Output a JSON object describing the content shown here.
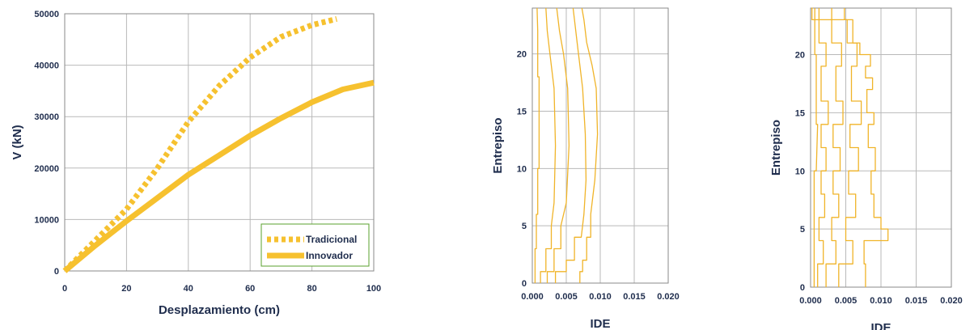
{
  "colors": {
    "series": "#f6c12f",
    "profile": "#f0b429",
    "grid": "#b9b9b9",
    "text": "#1f2d4d",
    "legend_border": "#5aa02c"
  },
  "chart_data": [
    {
      "type": "line",
      "xlabel": "Desplazamiento (cm)",
      "ylabel": "V (kN)",
      "xlim": [
        0,
        100
      ],
      "ylim": [
        0,
        50000
      ],
      "xticks": [
        "0",
        "20",
        "40",
        "60",
        "80",
        "100"
      ],
      "yticks": [
        "0",
        "10000",
        "20000",
        "30000",
        "40000",
        "50000"
      ],
      "grid": true,
      "legend_position": "bottom-right",
      "series": [
        {
          "name": "Tradicional",
          "style": "dotted",
          "x": [
            0,
            10,
            20,
            30,
            40,
            50,
            60,
            70,
            80,
            88
          ],
          "y": [
            0,
            6000,
            12000,
            20000,
            29000,
            36000,
            41500,
            45500,
            47800,
            49000
          ]
        },
        {
          "name": "Innovador",
          "style": "solid",
          "x": [
            0,
            10,
            20,
            30,
            40,
            50,
            60,
            70,
            80,
            90,
            100
          ],
          "y": [
            0,
            5000,
            9700,
            14200,
            18700,
            22500,
            26300,
            29700,
            32800,
            35300,
            36600
          ]
        }
      ]
    },
    {
      "type": "line",
      "xlabel": "IDE",
      "ylabel": "Entrepiso",
      "xlim": [
        0,
        0.02
      ],
      "ylim": [
        0,
        24
      ],
      "xticks": [
        "0.000",
        "0.005",
        "0.010",
        "0.015",
        "0.020"
      ],
      "yticks": [
        "0",
        "5",
        "10",
        "15",
        "20"
      ],
      "grid": true,
      "series": [
        {
          "x": [
            0.0004,
            0.0004,
            0.0006,
            0.0006,
            0.0008,
            0.0008,
            0.001,
            0.001,
            0.001,
            0.0008,
            0.0008,
            0.0007
          ],
          "y": [
            0,
            3,
            3,
            6,
            6,
            10,
            10,
            14,
            18,
            18,
            22,
            24
          ]
        },
        {
          "x": [
            0.0012,
            0.0012,
            0.002,
            0.002,
            0.0028,
            0.0028,
            0.0032,
            0.0034,
            0.0032,
            0.0026,
            0.0022,
            0.002
          ],
          "y": [
            0,
            1,
            1,
            3,
            3,
            5,
            7,
            12,
            17,
            20,
            22,
            24
          ]
        },
        {
          "x": [
            0.0022,
            0.0022,
            0.0032,
            0.0032,
            0.0042,
            0.0042,
            0.005,
            0.0054,
            0.0052,
            0.0046,
            0.004,
            0.0036
          ],
          "y": [
            0,
            1,
            1,
            3,
            3,
            5,
            7,
            12,
            17,
            20,
            22,
            24
          ]
        },
        {
          "x": [
            0.0034,
            0.0034,
            0.005,
            0.005,
            0.0062,
            0.0062,
            0.0072,
            0.0076,
            0.0079,
            0.0078,
            0.0074,
            0.007,
            0.0066,
            0.0062,
            0.006
          ],
          "y": [
            0,
            1,
            1,
            2,
            2,
            4,
            4,
            6,
            9,
            13,
            17,
            19,
            21,
            23,
            24
          ]
        },
        {
          "x": [
            0.007,
            0.007,
            0.0074,
            0.0074,
            0.008,
            0.008,
            0.0086,
            0.0086,
            0.0092,
            0.0096,
            0.0094,
            0.0088,
            0.008,
            0.0076,
            0.0073
          ],
          "y": [
            0,
            1,
            1,
            2,
            2,
            4,
            4,
            6,
            9,
            13,
            17,
            19,
            21,
            23,
            24
          ]
        }
      ]
    },
    {
      "type": "line",
      "xlabel": "IDE",
      "ylabel": "Entrepiso",
      "xlim": [
        0,
        0.02
      ],
      "ylim": [
        0,
        24
      ],
      "xticks": [
        "0.000",
        "0.005",
        "0.010",
        "0.015",
        "0.020"
      ],
      "yticks": [
        "0",
        "5",
        "10",
        "15",
        "20"
      ],
      "grid": true,
      "series": [
        {
          "x": [
            0.0005,
            0.0005,
            0.0005,
            0.0005,
            0.0008,
            0.001,
            0.0008,
            0.0008,
            0.0006,
            0.0006
          ],
          "y": [
            0,
            3,
            3,
            10,
            10,
            14,
            14,
            20,
            20,
            24
          ]
        },
        {
          "x": [
            0.001,
            0.001,
            0.0018,
            0.0018,
            0.0012,
            0.0012,
            0.002,
            0.002,
            0.0015,
            0.0015,
            0.0022,
            0.0022,
            0.0015,
            0.0015,
            0.0025,
            0.0025,
            0.0015,
            0.0015,
            0.0022,
            0.0022,
            0.0012,
            0.0012
          ],
          "y": [
            0,
            2,
            2,
            4,
            4,
            6,
            6,
            8,
            8,
            10,
            10,
            12,
            12,
            14,
            14,
            16,
            16,
            19,
            19,
            21,
            21,
            24
          ]
        },
        {
          "x": [
            0.0022,
            0.0022,
            0.0036,
            0.0036,
            0.003,
            0.003,
            0.004,
            0.004,
            0.0032,
            0.0032,
            0.0042,
            0.0042,
            0.0032,
            0.0032,
            0.0046,
            0.0046,
            0.0036,
            0.0036,
            0.0044,
            0.0044,
            0.003,
            0.003
          ],
          "y": [
            0,
            2,
            2,
            4,
            4,
            6,
            6,
            8,
            8,
            10,
            10,
            12,
            12,
            14,
            14,
            16,
            16,
            19,
            19,
            21,
            21,
            24
          ]
        },
        {
          "x": [
            0.004,
            0.004,
            0.006,
            0.006,
            0.005,
            0.005,
            0.0064,
            0.0064,
            0.0054,
            0.0054,
            0.0068,
            0.0068,
            0.0056,
            0.0056,
            0.0072,
            0.0072,
            0.0058,
            0.0058,
            0.0066,
            0.0066,
            0.0052,
            0.0052,
            0.0048,
            0.0048
          ],
          "y": [
            0,
            2,
            2,
            4,
            4,
            6,
            6,
            8,
            8,
            10,
            10,
            12,
            12,
            14,
            14,
            16,
            16,
            19,
            19,
            21,
            21,
            23,
            23,
            24
          ]
        },
        {
          "x": [
            0.0078,
            0.0078,
            0.0076,
            0.0076,
            0.011,
            0.011,
            0.01,
            0.01,
            0.009,
            0.009,
            0.0086,
            0.0086,
            0.0092,
            0.0092,
            0.0082,
            0.0082,
            0.009,
            0.009,
            0.008,
            0.008,
            0.0088,
            0.0088,
            0.0078,
            0.0078,
            0.0085,
            0.0085,
            0.007,
            0.007,
            0.006,
            0.006,
            0.0002,
            0.0002,
            0.0003
          ],
          "y": [
            0,
            2,
            2,
            4,
            4,
            5,
            5,
            6,
            6,
            8,
            8,
            10,
            10,
            12,
            12,
            14,
            14,
            15,
            15,
            17,
            17,
            18,
            18,
            19,
            19,
            20,
            20,
            21,
            21,
            23,
            23,
            24,
            24
          ]
        }
      ]
    }
  ]
}
